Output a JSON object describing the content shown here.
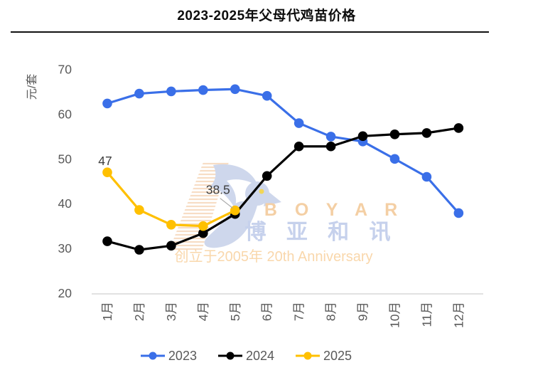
{
  "title": "2023-2025年父母代鸡苗价格",
  "chart_data": {
    "type": "line",
    "title": "2023-2025年父母代鸡苗价格",
    "ylabel": "元/套",
    "xlabel": "",
    "categories": [
      "1月",
      "2月",
      "3月",
      "4月",
      "5月",
      "6月",
      "7月",
      "8月",
      "9月",
      "10月",
      "11月",
      "12月"
    ],
    "series": [
      {
        "name": "2023",
        "color": "#3A6FE8",
        "values": [
          62.4,
          64.6,
          65.1,
          65.4,
          65.6,
          64.1,
          58.0,
          55.0,
          53.9,
          50.0,
          46.0,
          37.9
        ]
      },
      {
        "name": "2024",
        "color": "#000000",
        "values": [
          31.6,
          29.7,
          30.6,
          33.4,
          37.7,
          46.2,
          52.8,
          52.8,
          55.1,
          55.5,
          55.8,
          56.9
        ]
      },
      {
        "name": "2025",
        "color": "#FFC000",
        "values": [
          47,
          38.6,
          35.3,
          35.0,
          38.5
        ]
      }
    ],
    "annotations": [
      {
        "series": "2025",
        "index": 0,
        "text": "47"
      },
      {
        "series": "2025",
        "index": 4,
        "text": "38.5"
      }
    ],
    "ylim": [
      20,
      70
    ],
    "yticks": [
      70,
      60,
      50,
      40,
      30,
      20
    ],
    "grid": false,
    "legend_position": "bottom"
  },
  "watermark": {
    "brand": "B O Y A R",
    "brand_cn": "博 亚 和 讯",
    "tagline": "创立于2005年 20th Anniversary"
  },
  "colors": {
    "axis_text": "#595959",
    "axis_line": "#d9d9d9",
    "annotation_text": "#3d3d3d",
    "leader_line": "#a8a8a8",
    "watermark_orange": "#f4cda0",
    "watermark_blue": "#c4cfec",
    "watermark_tagline": "#f9d5a7"
  }
}
